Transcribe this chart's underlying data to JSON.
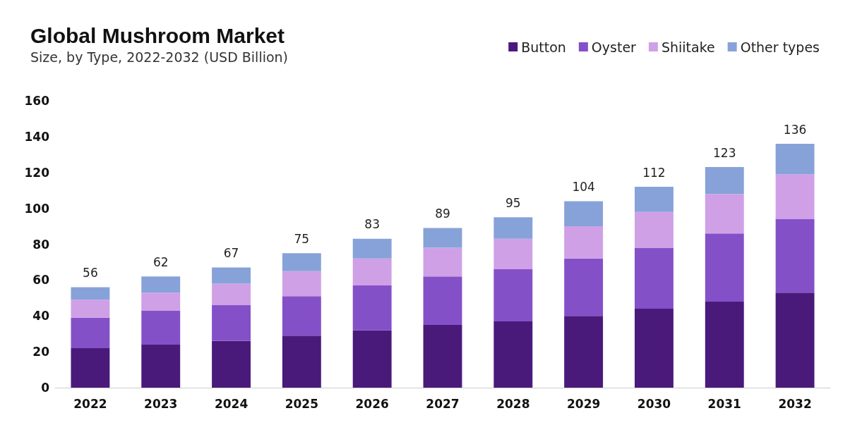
{
  "chart_data": {
    "type": "bar",
    "stacked": true,
    "title": "Global Mushroom Market",
    "subtitle": "Size, by Type, 2022-2032 (USD Billion)",
    "categories": [
      "2022",
      "2023",
      "2024",
      "2025",
      "2026",
      "2027",
      "2028",
      "2029",
      "2030",
      "2031",
      "2032"
    ],
    "series": [
      {
        "name": "Button",
        "color": "#4a1a7a",
        "values": [
          22,
          24,
          26,
          29,
          32,
          35,
          37,
          40,
          44,
          48,
          53
        ]
      },
      {
        "name": "Oyster",
        "color": "#8450c8",
        "values": [
          17,
          19,
          20,
          22,
          25,
          27,
          29,
          32,
          34,
          38,
          41
        ]
      },
      {
        "name": "Shiitake",
        "color": "#cfa0e6",
        "values": [
          10,
          10,
          12,
          14,
          15,
          16,
          17,
          18,
          20,
          22,
          25
        ]
      },
      {
        "name": "Other types",
        "color": "#87a2d8",
        "values": [
          7,
          9,
          9,
          10,
          11,
          11,
          12,
          14,
          14,
          15,
          17
        ]
      }
    ],
    "totals": [
      "56",
      "62",
      "67",
      "75",
      "83",
      "89",
      "95",
      "104",
      "112",
      "123",
      "136"
    ],
    "ylim": [
      0,
      160
    ],
    "yticks": [
      0,
      20,
      40,
      60,
      80,
      100,
      120,
      140,
      160
    ],
    "grid": false,
    "legend": "top right"
  }
}
